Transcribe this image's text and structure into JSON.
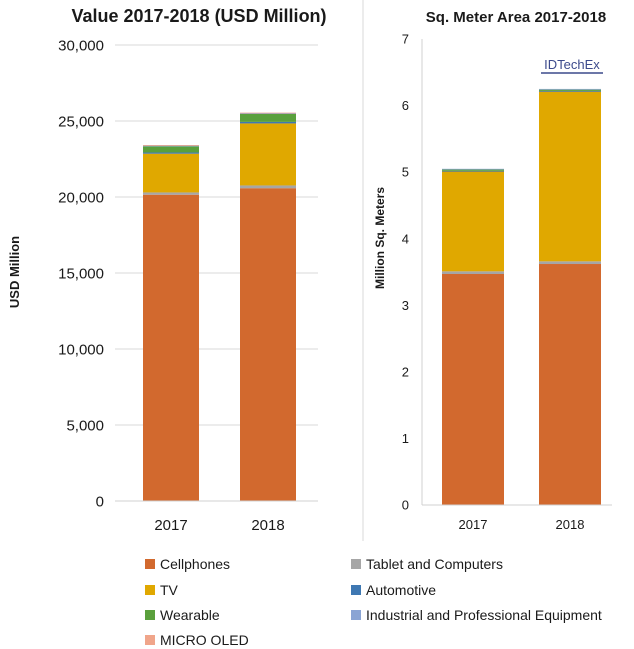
{
  "colors": {
    "cellphones": "#d2692e",
    "tablet": "#a6a6a6",
    "tv": "#e0a800",
    "automotive": "#3e78b2",
    "wearable": "#5aa03c",
    "industrial": "#8aa4d4",
    "micro_oled": "#f0a58a",
    "axis_text": "#1a1a1a",
    "grid": "#d9d9d9",
    "divider": "#d9d9d9",
    "logo": "#3c4a8c"
  },
  "chart_data": [
    {
      "type": "bar",
      "stacked": true,
      "title": "Value 2017-2018 (USD Million)",
      "xlabel": "",
      "ylabel": "USD Million",
      "categories": [
        "2017",
        "2018"
      ],
      "ylim": [
        0,
        30000
      ],
      "yticks": [
        0,
        5000,
        10000,
        15000,
        20000,
        25000,
        30000
      ],
      "ytick_labels": [
        "0",
        "5,000",
        "10,000",
        "15,000",
        "20,000",
        "25,000",
        "30,000"
      ],
      "grid": true,
      "legend": "bottom",
      "series": [
        {
          "name": "Cellphones",
          "key": "cellphones",
          "values": [
            20150,
            20580
          ]
        },
        {
          "name": "Tablet and Computers",
          "key": "tablet",
          "values": [
            150,
            180
          ]
        },
        {
          "name": "TV",
          "key": "tv",
          "values": [
            2550,
            4080
          ]
        },
        {
          "name": "Automotive",
          "key": "automotive",
          "values": [
            80,
            100
          ]
        },
        {
          "name": "Wearable",
          "key": "wearable",
          "values": [
            400,
            520
          ]
        },
        {
          "name": "Industrial and Professional Equipment",
          "key": "industrial",
          "values": [
            70,
            70
          ]
        },
        {
          "name": "MICRO OLED",
          "key": "micro_oled",
          "values": [
            20,
            20
          ]
        }
      ]
    },
    {
      "type": "bar",
      "stacked": true,
      "title": "Sq. Meter Area 2017-2018",
      "xlabel": "",
      "ylabel": "Million Sq. Meters",
      "categories": [
        "2017",
        "2018"
      ],
      "ylim": [
        0,
        7
      ],
      "yticks": [
        0,
        1,
        2,
        3,
        4,
        5,
        6,
        7
      ],
      "ytick_labels": [
        "0",
        "1",
        "2",
        "3",
        "4",
        "5",
        "6",
        "7"
      ],
      "grid": false,
      "legend": "bottom",
      "series": [
        {
          "name": "Cellphones",
          "key": "cellphones",
          "values": [
            3.47,
            3.62
          ]
        },
        {
          "name": "Tablet and Computers",
          "key": "tablet",
          "values": [
            0.04,
            0.04
          ]
        },
        {
          "name": "TV",
          "key": "tv",
          "values": [
            1.5,
            2.55
          ]
        },
        {
          "name": "Automotive",
          "key": "automotive",
          "values": [
            0.01,
            0.01
          ]
        },
        {
          "name": "Wearable",
          "key": "wearable",
          "values": [
            0.02,
            0.02
          ]
        },
        {
          "name": "Industrial and Professional Equipment",
          "key": "industrial",
          "values": [
            0.01,
            0.01
          ]
        },
        {
          "name": "MICRO OLED",
          "key": "micro_oled",
          "values": [
            0.0,
            0.0
          ]
        }
      ]
    }
  ],
  "logo": {
    "text": "IDTechEx"
  },
  "legend": {
    "items": [
      {
        "label": "Cellphones",
        "key": "cellphones"
      },
      {
        "label": "Tablet and Computers",
        "key": "tablet"
      },
      {
        "label": "TV",
        "key": "tv"
      },
      {
        "label": "Automotive",
        "key": "automotive"
      },
      {
        "label": "Wearable",
        "key": "wearable"
      },
      {
        "label": "Industrial and Professional Equipment",
        "key": "industrial"
      },
      {
        "label": "MICRO OLED",
        "key": "micro_oled"
      }
    ]
  }
}
